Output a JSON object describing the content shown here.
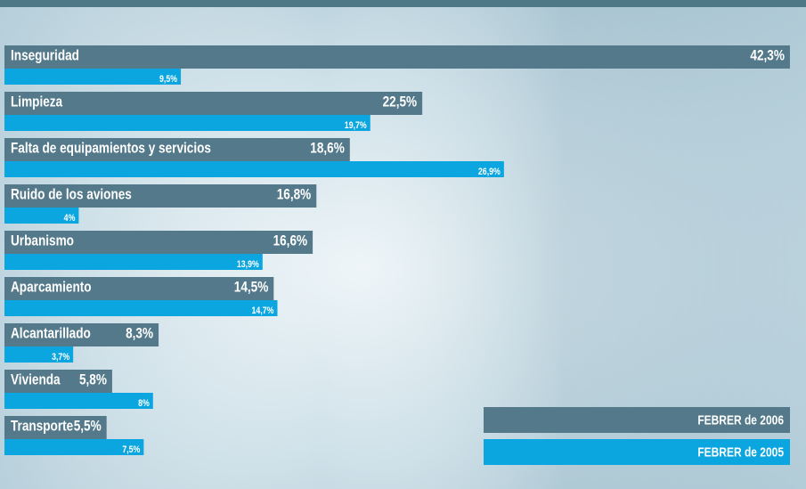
{
  "chart_data": {
    "type": "bar",
    "orientation": "horizontal",
    "categories": [
      "Inseguridad",
      "Limpieza",
      "Falta de equipamientos y servicios",
      "Ruido de los aviones",
      "Urbanismo",
      "Aparcamiento",
      "Alcantarillado",
      "Vivienda",
      "Transporte"
    ],
    "series": [
      {
        "name": "FEBRER de 2006",
        "color": "#53798a",
        "values": [
          42.3,
          22.5,
          18.6,
          16.8,
          16.6,
          14.5,
          8.3,
          5.8,
          5.5
        ],
        "value_labels": [
          "42,3%",
          "22,5%",
          "18,6%",
          "16,8%",
          "16,6%",
          "14,5%",
          "8,3%",
          "5,8%",
          "5,5%"
        ]
      },
      {
        "name": "FEBRER de 2005",
        "color": "#0ba6df",
        "values": [
          9.5,
          19.7,
          26.9,
          4,
          13.9,
          14.7,
          3.7,
          8,
          7.5
        ],
        "value_labels": [
          "9,5%",
          "19,7%",
          "26,9%",
          "4%",
          "13,9%",
          "14,7%",
          "3,7%",
          "8%",
          "7,5%"
        ]
      }
    ],
    "legend": "bottom-right"
  }
}
